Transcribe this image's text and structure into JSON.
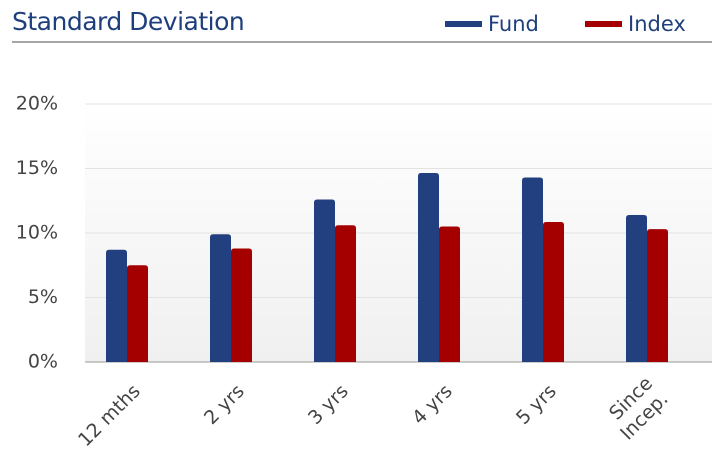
{
  "chart_data": {
    "type": "bar",
    "title": "Standard Deviation",
    "categories": [
      "12 mths",
      "2 yrs",
      "3 yrs",
      "4 yrs",
      "5 yrs",
      "Since Incep."
    ],
    "series": [
      {
        "name": "Fund",
        "color": "#22407f",
        "values": [
          8.7,
          9.9,
          12.6,
          14.65,
          14.3,
          11.4
        ]
      },
      {
        "name": "Index",
        "color": "#a50000",
        "values": [
          7.5,
          8.8,
          10.6,
          10.5,
          10.85,
          10.3
        ]
      }
    ],
    "ylim": [
      0,
      20
    ],
    "yticks": [
      {
        "value": 0,
        "label": "0%"
      },
      {
        "value": 5,
        "label": "5%"
      },
      {
        "value": 10,
        "label": "10%"
      },
      {
        "value": 15,
        "label": "15%"
      },
      {
        "value": 20,
        "label": "20%"
      }
    ],
    "grid": true,
    "legend": "top-right"
  }
}
